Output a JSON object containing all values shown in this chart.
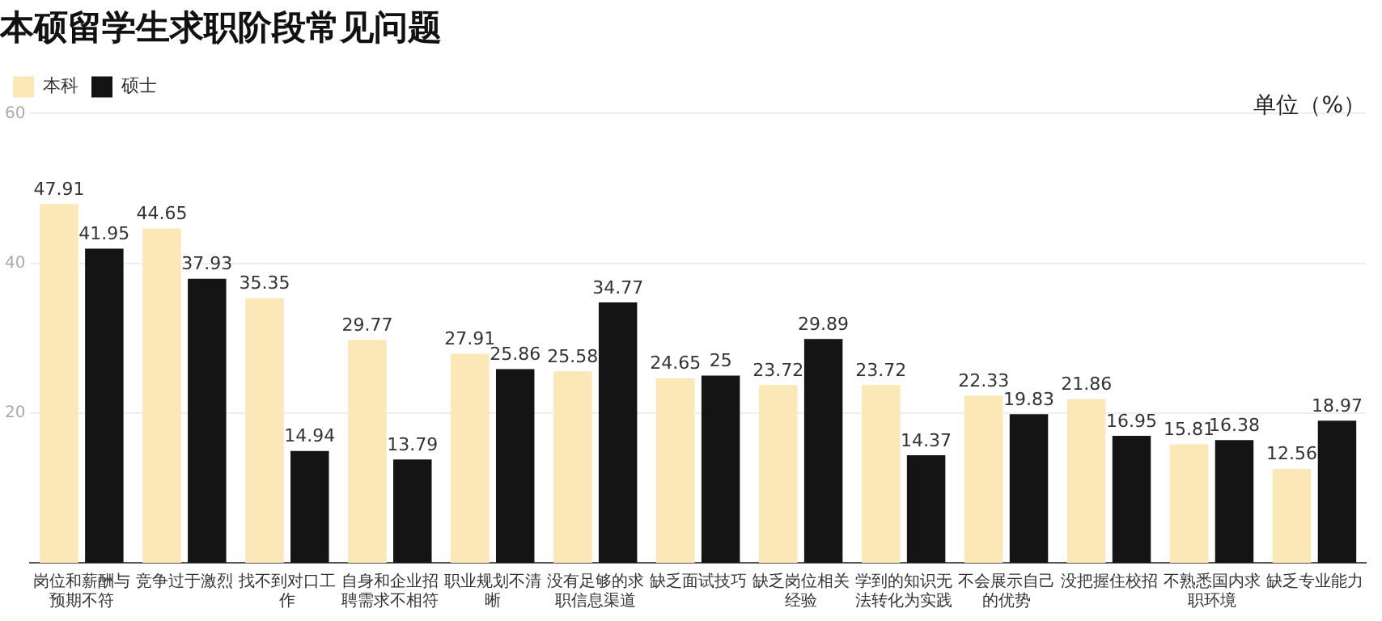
{
  "chart_data": {
    "type": "bar",
    "title": "本硕留学生求职阶段常见问题",
    "annotations": [
      "单位（%）"
    ],
    "categories": [
      "岗位和薪酬与预期不符",
      "竞争过于激烈",
      "找不到对口工作",
      "自身和企业招聘需求不相符",
      "职业规划不清晰",
      "没有足够的求职信息渠道",
      "缺乏面试技巧",
      "缺乏岗位相关经验",
      "学到的知识无法转化为实践",
      "不会展示自己的优势",
      "没把握住校招",
      "不熟悉国内求职环境",
      "缺乏专业能力"
    ],
    "series": [
      {
        "name": "本科",
        "color": "#fce8b6",
        "values": [
          47.91,
          44.65,
          35.35,
          29.77,
          27.91,
          25.58,
          24.65,
          23.72,
          23.72,
          22.33,
          21.86,
          15.81,
          12.56
        ]
      },
      {
        "name": "硕士",
        "color": "#141414",
        "values": [
          41.95,
          37.93,
          14.94,
          13.79,
          25.86,
          34.77,
          25,
          29.89,
          14.37,
          19.83,
          16.95,
          16.38,
          18.97
        ]
      }
    ],
    "ylim": [
      0,
      60
    ],
    "yticks": [
      20,
      40,
      60
    ],
    "grid": "y",
    "legend": "top left",
    "data_labels": true
  }
}
